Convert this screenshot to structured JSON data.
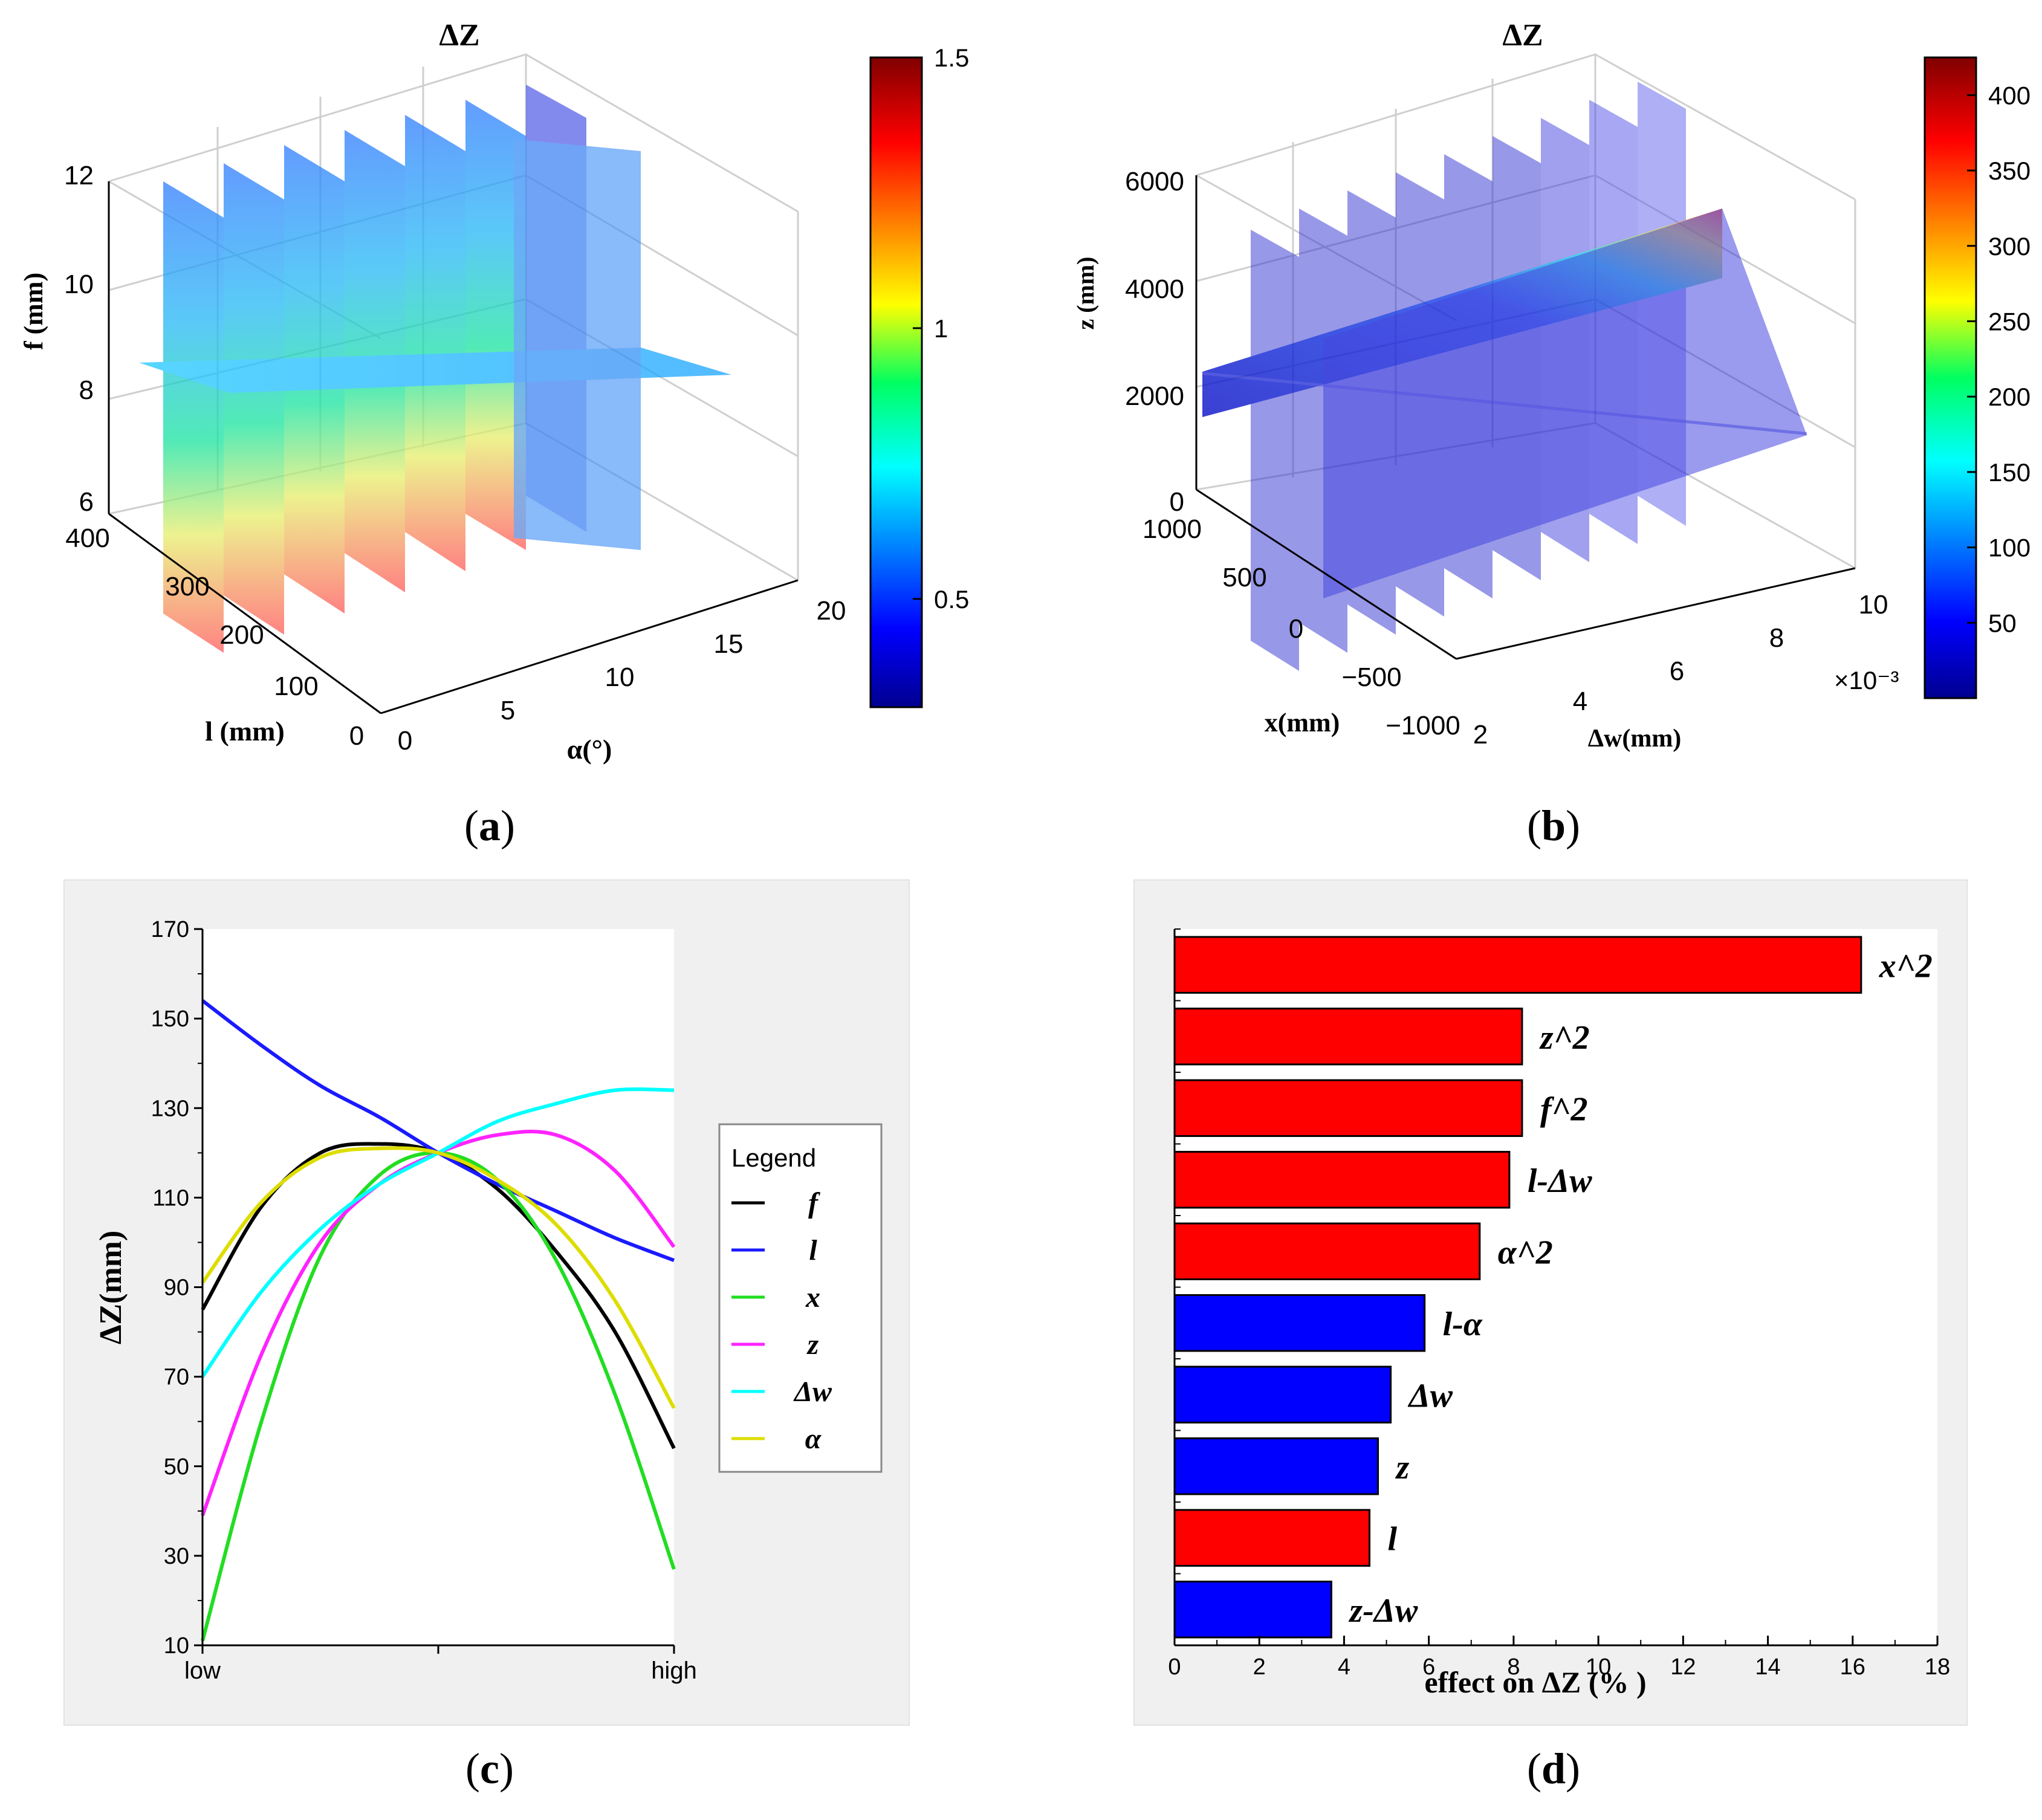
{
  "captions": {
    "a": "a",
    "b": "b",
    "c": "c",
    "d": "d"
  },
  "chart_data": [
    {
      "id": "a",
      "type": "volumetric-slice-3d",
      "title": "ΔZ",
      "xlabel": "α(°)",
      "ylabel": "l (mm)",
      "zlabel": "f (mm)",
      "x_ticks": [
        "0",
        "5",
        "10",
        "15",
        "20"
      ],
      "y_ticks": [
        "0",
        "100",
        "200",
        "300",
        "400"
      ],
      "z_ticks": [
        "6",
        "8",
        "10",
        "12"
      ],
      "xlim": [
        0,
        20
      ],
      "ylim": [
        0,
        400
      ],
      "zlim": [
        6,
        12
      ],
      "colorbar": {
        "min": 0.3,
        "max": 1.5,
        "ticks": [
          "0.5",
          "1",
          "1.5"
        ],
        "colormap": "jet"
      }
    },
    {
      "id": "b",
      "type": "volumetric-slice-3d",
      "title": "ΔZ",
      "xlabel": "Δw(mm)",
      "ylabel": "x(mm)",
      "zlabel": "z (mm)",
      "x_ticks": [
        "2",
        "4",
        "6",
        "8",
        "10"
      ],
      "x_exponent": "×10⁻³",
      "y_ticks": [
        "−1000",
        "−500",
        "0",
        "500",
        "1000"
      ],
      "z_ticks": [
        "0",
        "2000",
        "4000",
        "6000"
      ],
      "xlim": [
        2,
        10
      ],
      "ylim": [
        -1000,
        1000
      ],
      "zlim": [
        0,
        6000
      ],
      "colorbar": {
        "min": 0,
        "max": 425,
        "ticks": [
          "50",
          "100",
          "150",
          "200",
          "250",
          "300",
          "350",
          "400"
        ],
        "colormap": "jet"
      }
    },
    {
      "id": "c",
      "type": "line",
      "ylabel": "ΔZ(mm)",
      "x_ticks": [
        "low",
        "high"
      ],
      "x": [
        0,
        0.125,
        0.25,
        0.375,
        0.5,
        0.625,
        0.75,
        0.875,
        1
      ],
      "ylim": [
        10,
        170
      ],
      "y_ticks": [
        10,
        30,
        50,
        70,
        90,
        110,
        130,
        150,
        170
      ],
      "legend_title": "Legend",
      "series": [
        {
          "name": "f",
          "color": "#000000",
          "values": [
            85,
            108,
            120,
            122,
            120,
            112,
            98,
            80,
            54
          ]
        },
        {
          "name": "l",
          "color": "#1a1aff",
          "values": [
            154,
            144,
            135,
            128,
            120,
            113,
            107,
            101,
            96
          ]
        },
        {
          "name": "x",
          "color": "#22dd22",
          "values": [
            11,
            60,
            97,
            115,
            120,
            114,
            96,
            66,
            27
          ]
        },
        {
          "name": "z",
          "color": "#ff22ff",
          "values": [
            39,
            75,
            100,
            113,
            120,
            124,
            124,
            116,
            99
          ]
        },
        {
          "name": "Δw",
          "color": "#00ffff",
          "values": [
            70,
            89,
            103,
            113,
            120,
            127,
            131,
            134,
            134
          ]
        },
        {
          "name": "α",
          "color": "#dddd00",
          "values": [
            91,
            109,
            119,
            121,
            120,
            114,
            104,
            87,
            63
          ]
        }
      ]
    },
    {
      "id": "d",
      "type": "bar",
      "orientation": "horizontal",
      "xlabel": "effect on ΔZ (% )",
      "xlim": [
        0,
        18
      ],
      "x_ticks": [
        0,
        2,
        4,
        6,
        8,
        10,
        12,
        14,
        16,
        18
      ],
      "categories": [
        "x^2",
        "z^2",
        "f^2",
        "l-Δw",
        "α^2",
        "l-α",
        "Δw",
        "z",
        "l",
        "z-Δw"
      ],
      "values": [
        16.2,
        8.2,
        8.2,
        7.9,
        7.2,
        5.9,
        5.1,
        4.8,
        4.6,
        3.7
      ],
      "colors": [
        "#ff0000",
        "#ff0000",
        "#ff0000",
        "#ff0000",
        "#ff0000",
        "#0000ff",
        "#0000ff",
        "#0000ff",
        "#ff0000",
        "#0000ff"
      ]
    }
  ]
}
